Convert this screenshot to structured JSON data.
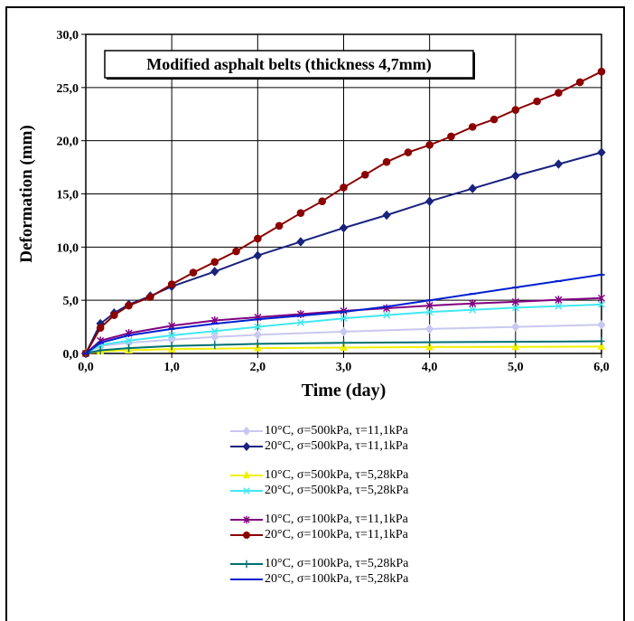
{
  "chart_data": {
    "type": "line",
    "title": "Modified asphalt belts (thickness 4,7mm)",
    "xlabel": "Time (day)",
    "ylabel": "Deformation (mm)",
    "xlim": [
      0,
      6
    ],
    "ylim": [
      0,
      30
    ],
    "x_ticks": [
      "0,0",
      "1,0",
      "2,0",
      "3,0",
      "4,0",
      "5,0",
      "6,0"
    ],
    "y_ticks": [
      "0,0",
      "5,0",
      "10,0",
      "15,0",
      "20,0",
      "25,0",
      "30,0"
    ],
    "grid": true,
    "legend_position": "bottom",
    "series": [
      {
        "name": "10°C, σ=500kPa, τ=11,1kPa",
        "color": "#c8c8f0",
        "marker": "diamond",
        "group": 0,
        "points": [
          [
            0,
            0
          ],
          [
            0.17,
            0.7
          ],
          [
            0.5,
            1.0
          ],
          [
            1,
            1.3
          ],
          [
            1.5,
            1.55
          ],
          [
            2,
            1.75
          ],
          [
            3,
            2.05
          ],
          [
            4,
            2.3
          ],
          [
            5,
            2.5
          ],
          [
            6,
            2.7
          ]
        ]
      },
      {
        "name": "20°C, σ=500kPa, τ=11,1kPa",
        "color": "#1a237e",
        "marker": "diamond",
        "group": 0,
        "points": [
          [
            0,
            0
          ],
          [
            0.17,
            2.8
          ],
          [
            0.33,
            3.8
          ],
          [
            0.5,
            4.6
          ],
          [
            0.75,
            5.4
          ],
          [
            1,
            6.3
          ],
          [
            1.5,
            7.7
          ],
          [
            2,
            9.2
          ],
          [
            2.5,
            10.5
          ],
          [
            3,
            11.8
          ],
          [
            3.5,
            13.0
          ],
          [
            4,
            14.3
          ],
          [
            4.5,
            15.5
          ],
          [
            5,
            16.7
          ],
          [
            5.5,
            17.8
          ],
          [
            6,
            18.9
          ]
        ]
      },
      {
        "name": "10°C, σ=500kPa, τ=5,28kPa",
        "color": "#f0f000",
        "marker": "triangle",
        "group": 1,
        "points": [
          [
            0,
            0
          ],
          [
            0.17,
            0.2
          ],
          [
            0.5,
            0.3
          ],
          [
            1,
            0.4
          ],
          [
            2,
            0.5
          ],
          [
            3,
            0.55
          ],
          [
            4,
            0.6
          ],
          [
            5,
            0.62
          ],
          [
            6,
            0.65
          ]
        ]
      },
      {
        "name": "20°C, σ=500kPa, τ=5,28kPa",
        "color": "#40e8f0",
        "marker": "x",
        "group": 1,
        "points": [
          [
            0,
            0
          ],
          [
            0.17,
            0.8
          ],
          [
            0.5,
            1.2
          ],
          [
            1,
            1.7
          ],
          [
            1.5,
            2.1
          ],
          [
            2,
            2.5
          ],
          [
            2.5,
            2.9
          ],
          [
            3,
            3.3
          ],
          [
            3.5,
            3.6
          ],
          [
            4,
            3.9
          ],
          [
            4.5,
            4.1
          ],
          [
            5,
            4.3
          ],
          [
            5.5,
            4.45
          ],
          [
            6,
            4.6
          ]
        ]
      },
      {
        "name": "10°C, σ=100kPa, τ=11,1kPa",
        "color": "#800080",
        "marker": "star",
        "group": 2,
        "points": [
          [
            0,
            0
          ],
          [
            0.17,
            1.2
          ],
          [
            0.5,
            1.9
          ],
          [
            1,
            2.6
          ],
          [
            1.5,
            3.1
          ],
          [
            2,
            3.4
          ],
          [
            2.5,
            3.7
          ],
          [
            3,
            4.0
          ],
          [
            3.5,
            4.25
          ],
          [
            4,
            4.5
          ],
          [
            4.5,
            4.7
          ],
          [
            5,
            4.85
          ],
          [
            5.5,
            5.05
          ],
          [
            6,
            5.2
          ]
        ]
      },
      {
        "name": "20°C, σ=100kPa, τ=11,1kPa",
        "color": "#8b0000",
        "marker": "circle",
        "group": 2,
        "points": [
          [
            0,
            0
          ],
          [
            0.17,
            2.4
          ],
          [
            0.33,
            3.6
          ],
          [
            0.5,
            4.5
          ],
          [
            0.75,
            5.3
          ],
          [
            1,
            6.5
          ],
          [
            1.25,
            7.6
          ],
          [
            1.5,
            8.6
          ],
          [
            1.75,
            9.6
          ],
          [
            2,
            10.8
          ],
          [
            2.25,
            12.0
          ],
          [
            2.5,
            13.2
          ],
          [
            2.75,
            14.3
          ],
          [
            3,
            15.6
          ],
          [
            3.25,
            16.8
          ],
          [
            3.5,
            18.0
          ],
          [
            3.75,
            18.9
          ],
          [
            4,
            19.6
          ],
          [
            4.25,
            20.4
          ],
          [
            4.5,
            21.3
          ],
          [
            4.75,
            22.0
          ],
          [
            5,
            22.9
          ],
          [
            5.25,
            23.7
          ],
          [
            5.5,
            24.5
          ],
          [
            5.75,
            25.5
          ],
          [
            6,
            26.5
          ]
        ]
      },
      {
        "name": "10°C, σ=100kPa, τ=5,28kPa",
        "color": "#007070",
        "marker": "plus",
        "group": 3,
        "points": [
          [
            0,
            0
          ],
          [
            0.17,
            0.3
          ],
          [
            0.5,
            0.5
          ],
          [
            1,
            0.7
          ],
          [
            1.5,
            0.8
          ],
          [
            2,
            0.9
          ],
          [
            3,
            1.0
          ],
          [
            4,
            1.05
          ],
          [
            5,
            1.1
          ],
          [
            6,
            1.15
          ]
        ]
      },
      {
        "name": "20°C, σ=100kPa, τ=5,28kPa",
        "color": "#0020d0",
        "marker": "dash",
        "group": 3,
        "points": [
          [
            0,
            0
          ],
          [
            0.17,
            1.0
          ],
          [
            0.5,
            1.7
          ],
          [
            1,
            2.3
          ],
          [
            1.5,
            2.8
          ],
          [
            2,
            3.2
          ],
          [
            2.5,
            3.55
          ],
          [
            3,
            3.9
          ],
          [
            3.5,
            4.4
          ],
          [
            4,
            5.0
          ],
          [
            4.5,
            5.6
          ],
          [
            5,
            6.2
          ],
          [
            5.5,
            6.8
          ],
          [
            6,
            7.4
          ]
        ]
      }
    ]
  }
}
